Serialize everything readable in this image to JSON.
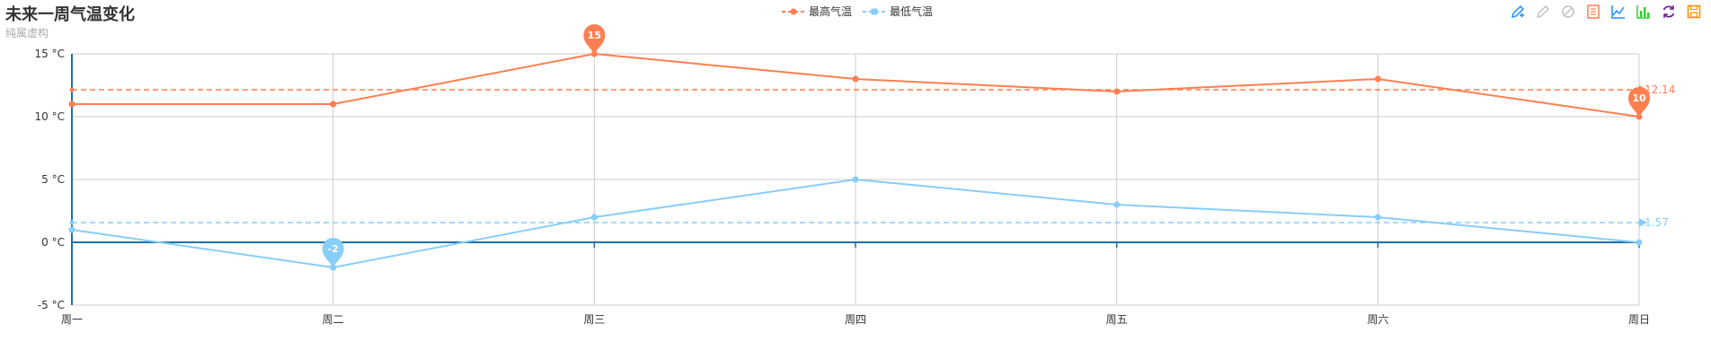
{
  "chart_data": {
    "type": "line",
    "title": "未来一周气温变化",
    "subtitle": "纯属虚构",
    "categories": [
      "周一",
      "周二",
      "周三",
      "周四",
      "周五",
      "周六",
      "周日"
    ],
    "y_ticks": [
      "-5 °C",
      "0 °C",
      "5 °C",
      "10 °C",
      "15 °C"
    ],
    "ylim": [
      -5,
      15
    ],
    "grid": true,
    "legend_position": "top-center",
    "series": [
      {
        "name": "最高气温",
        "color": "#ff7f50",
        "values": [
          11,
          11,
          15,
          13,
          12,
          13,
          10
        ],
        "max_label": "15",
        "min_label": "10",
        "average": 12.14,
        "average_label": "12.14"
      },
      {
        "name": "最低气温",
        "color": "#87cefa",
        "values": [
          1,
          -2,
          2,
          5,
          3,
          2,
          0
        ],
        "min_label": "-2",
        "average": 1.57,
        "average_label": "1.57"
      }
    ]
  },
  "toolbox": {
    "icons": [
      {
        "name": "mark-icon",
        "color": "#1e90ff"
      },
      {
        "name": "mark-undo-icon",
        "color": "#c0c0c0"
      },
      {
        "name": "mark-clear-icon",
        "color": "#c0c0c0"
      },
      {
        "name": "data-view-icon",
        "color": "#ff7f50"
      },
      {
        "name": "line-chart-icon",
        "color": "#1e90ff"
      },
      {
        "name": "bar-chart-icon",
        "color": "#32cd32"
      },
      {
        "name": "restore-icon",
        "color": "#6b238e"
      },
      {
        "name": "save-image-icon",
        "color": "#ff8c00"
      }
    ]
  }
}
